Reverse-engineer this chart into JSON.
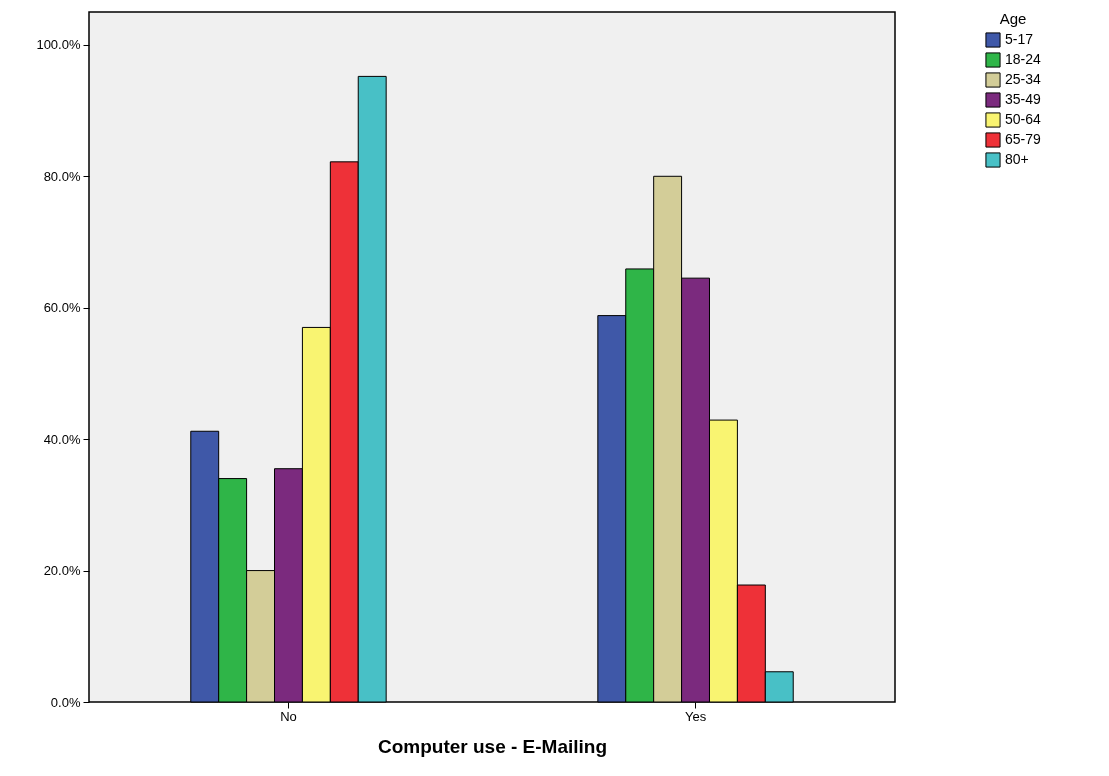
{
  "chart_data": {
    "type": "bar",
    "xlabel": "Computer use - E-Mailing",
    "legend_title": "Age",
    "legend": "top right",
    "categories": [
      "No",
      "Yes"
    ],
    "series": [
      {
        "name": "5-17",
        "color": "#3f58a8",
        "values": [
          41.2,
          58.8
        ]
      },
      {
        "name": "18-24",
        "color": "#2fb548",
        "values": [
          34.0,
          65.9
        ]
      },
      {
        "name": "25-34",
        "color": "#d3cd98",
        "values": [
          20.0,
          80.0
        ]
      },
      {
        "name": "35-49",
        "color": "#7b2a7e",
        "values": [
          35.5,
          64.5
        ]
      },
      {
        "name": "50-64",
        "color": "#f9f471",
        "values": [
          57.0,
          42.9
        ]
      },
      {
        "name": "65-79",
        "color": "#ee3138",
        "values": [
          82.2,
          17.8
        ]
      },
      {
        "name": "80+",
        "color": "#48c0c6",
        "values": [
          95.2,
          4.6
        ]
      }
    ],
    "ylim": [
      0,
      105
    ],
    "yticks": [
      {
        "value": 0,
        "label": "0.0%"
      },
      {
        "value": 20,
        "label": "20.0%"
      },
      {
        "value": 40,
        "label": "40.0%"
      },
      {
        "value": 60,
        "label": "60.0%"
      },
      {
        "value": 80,
        "label": "80.0%"
      },
      {
        "value": 100,
        "label": "100.0%"
      }
    ]
  }
}
